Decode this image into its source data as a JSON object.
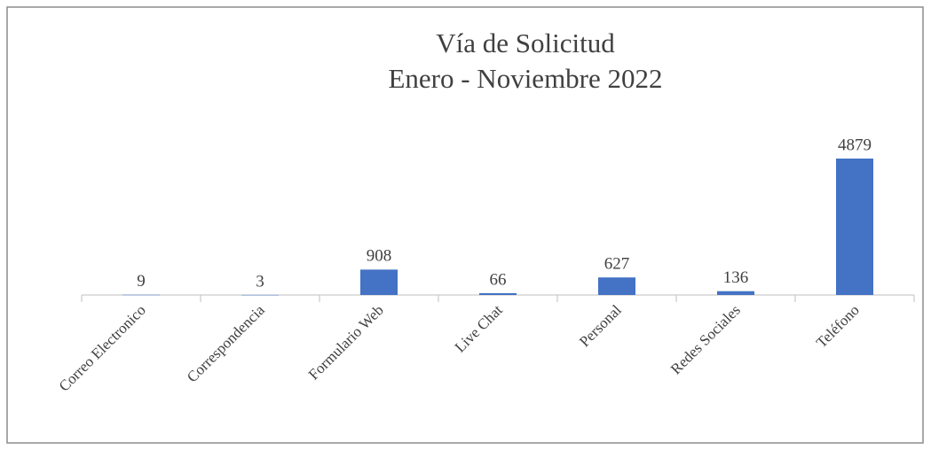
{
  "chart_data": {
    "type": "bar",
    "title": "Vía de Solicitud",
    "subtitle": "Enero - Noviembre 2022",
    "categories": [
      "Correo Electronico",
      "Correspondencia",
      "Formulario Web",
      "Live Chat",
      "Personal",
      "Redes Sociales",
      "Teléfono"
    ],
    "values": [
      9,
      3,
      908,
      66,
      627,
      136,
      4879
    ],
    "color": "#4472c4"
  }
}
